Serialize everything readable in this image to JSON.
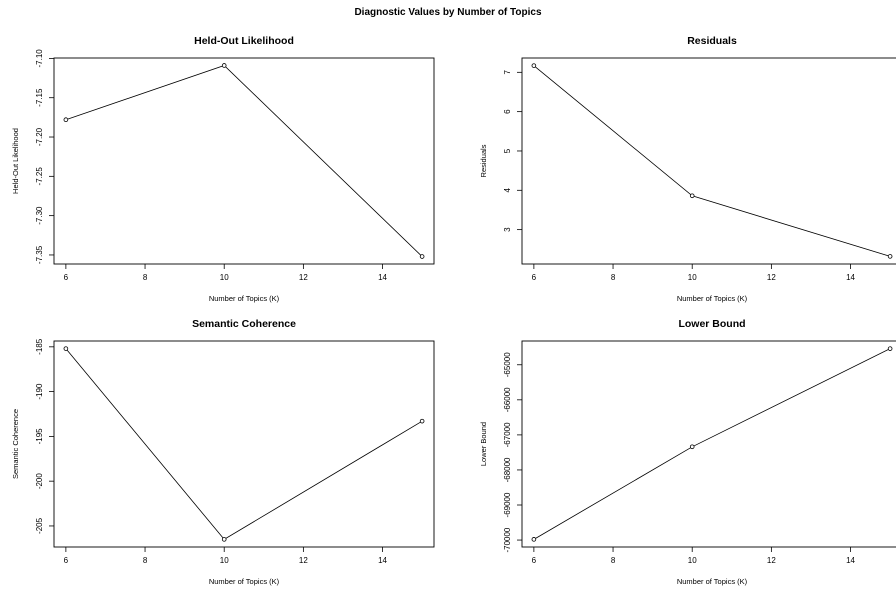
{
  "title": "Diagnostic Values by Number of Topics",
  "chart_data": [
    {
      "type": "line",
      "title": "Held-Out Likelihood",
      "xlabel": "Number of Topics (K)",
      "ylabel": "Held-Out Likelihood",
      "x": [
        6,
        10,
        15
      ],
      "y": [
        -7.178,
        -7.109,
        -7.352
      ],
      "xticks": [
        6,
        8,
        10,
        12,
        14
      ],
      "xtick_labels": [
        "6",
        "8",
        "10",
        "12",
        "14"
      ],
      "yticks": [
        -7.1,
        -7.15,
        -7.2,
        -7.25,
        -7.3,
        -7.35
      ],
      "ytick_labels": [
        "-7.10",
        "-7.15",
        "-7.20",
        "-7.25",
        "-7.30",
        "-7.35"
      ],
      "xlim": [
        5.7,
        15.3
      ],
      "ylim": [
        -7.3615,
        -7.0995
      ],
      "grid": false,
      "legend": "none"
    },
    {
      "type": "line",
      "title": "Residuals",
      "xlabel": "Number of Topics (K)",
      "ylabel": "Residuals",
      "x": [
        6,
        10,
        15
      ],
      "y": [
        7.17,
        3.86,
        2.32
      ],
      "xticks": [
        6,
        8,
        10,
        12,
        14
      ],
      "xtick_labels": [
        "6",
        "8",
        "10",
        "12",
        "14"
      ],
      "yticks": [
        3,
        4,
        5,
        6,
        7
      ],
      "ytick_labels": [
        "3",
        "4",
        "5",
        "6",
        "7"
      ],
      "xlim": [
        5.7,
        15.3
      ],
      "ylim": [
        2.126,
        7.364
      ],
      "grid": false,
      "legend": "none"
    },
    {
      "type": "line",
      "title": "Semantic Coherence",
      "xlabel": "Number of Topics (K)",
      "ylabel": "Semantic Coherence",
      "x": [
        6,
        10,
        15
      ],
      "y": [
        -185.2,
        -206.5,
        -193.3
      ],
      "xticks": [
        6,
        8,
        10,
        12,
        14
      ],
      "xtick_labels": [
        "6",
        "8",
        "10",
        "12",
        "14"
      ],
      "yticks": [
        -185,
        -190,
        -195,
        -200,
        -205
      ],
      "ytick_labels": [
        "-185",
        "-190",
        "-195",
        "-200",
        "-205"
      ],
      "xlim": [
        5.7,
        15.3
      ],
      "ylim": [
        -207.35,
        -184.35
      ],
      "grid": false,
      "legend": "none"
    },
    {
      "type": "line",
      "title": "Lower Bound",
      "xlabel": "Number of Topics (K)",
      "ylabel": "Lower Bound",
      "x": [
        6,
        10,
        15
      ],
      "y": [
        -69980,
        -67340,
        -64540
      ],
      "xticks": [
        6,
        8,
        10,
        12,
        14
      ],
      "xtick_labels": [
        "6",
        "8",
        "10",
        "12",
        "14"
      ],
      "yticks": [
        -65000,
        -66000,
        -67000,
        -68000,
        -69000,
        -70000
      ],
      "ytick_labels": [
        "-65000",
        "-66000",
        "-67000",
        "-68000",
        "-69000",
        "-70000"
      ],
      "xlim": [
        5.7,
        15.3
      ],
      "ylim": [
        -70198,
        -64322
      ],
      "grid": false,
      "legend": "none"
    }
  ]
}
